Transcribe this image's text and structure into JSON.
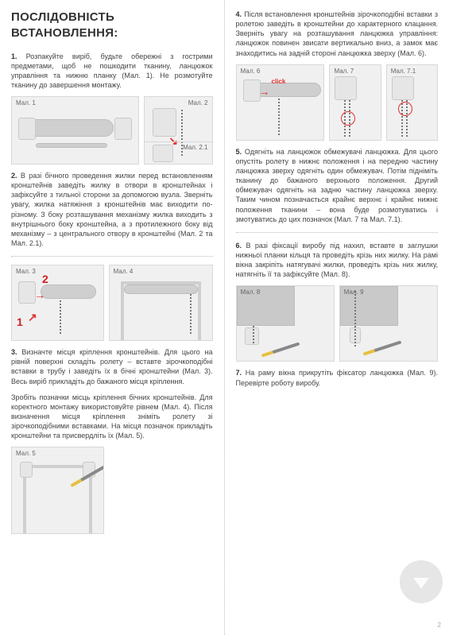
{
  "title": "ПОСЛІДОВНІСТЬ ВСТАНОВЛЕННЯ:",
  "p1": "1. Розпакуйте виріб, будьте обережні з гострими предметами, щоб не пошкодити тканину, ланцюжок управління та нижню планку (Мал. 1). Не розмотуйте тканину до завершення монтажу.",
  "p2": "2. В разі бічного проведення жилки перед встановленням кронштейнів заведіть жилку в отвори в кронштейнах і зафіксуйте з тильної сторони за допомогою вузла. Зверніть увагу, жилка натяжіння з кронштейнів має виходити по-різному. З боку розташування механізму жилка виходить з внутрішнього боку кронштейна, а з протилежного боку від механізму – з центрального отвору в кронштейні (Мал. 2 та Мал. 2.1).",
  "p3a": "3. Визначте місця кріплення кронштейнів. Для цього на рівній поверхні складіть ролету – вставте зірочкоподібні вставки в трубу і заведіть їх в бічні кронштейни (Мал. 3). Весь виріб прикладіть до бажаного місця кріплення.",
  "p3b": "Зробіть позначки місць кріплення бічних кронштейнів. Для коректного монтажу використовуйте рівнем (Мал. 4). Після визначення місця кріплення зніміть ролету зі зірочкоподібними вставками. На місця позначок прикладіть кронштейни та присвердліть їх (Мал. 5).",
  "p4": "4. Після встановлення кронштейнів зірочкоподібні вставки з ролетою заведіть в кронштейни до характерного клацання. Зверніть увагу на розташування ланцюжка управління: ланцюжок повинен звисати вертикально вниз, а замок має знаходитись на задній стороні ланцюжка зверху (Мал. 6).",
  "p5": "5. Одягніть на ланцюжок обмежувачі ланцюжка. Для цього опустіть ролету в нижнє положення і на передню частину ланцюжка зверху одягніть один обмежувач. Потім підніміть тканину до бажаного верхнього положення. Другий обмежувач одягніть на задню частину ланцюжка зверху. Таким чином позначається крайнє верхнє і крайнє нижнє положення тканини – вона буде розмотуватись і змотуватись до цих позначок (Мал. 7 та Мал. 7.1).",
  "p6": "6. В разі фіксації виробу під нахил, вставте в заглушки нижньої планки кільця та проведіть крізь них жилку. На рамі вікна закріпіть натягувачі жилки, проведіть крізь них жилку, натягніть її та зафіксуйте (Мал. 8).",
  "p7": "7. На раму вікна прикрутіть фіксатор ланцюжка (Мал. 9). Перевірте роботу виробу.",
  "labels": {
    "m1": "Мал. 1",
    "m2": "Мал. 2",
    "m21": "Мал. 2.1",
    "m3": "Мал. 3",
    "m4": "Мал. 4",
    "m5": "Мал. 5",
    "m6": "Мал. 6",
    "m7": "Мал. 7",
    "m71": "Мал. 7.1",
    "m8": "Мал. 8",
    "m9": "Мал. 9"
  },
  "click": "click",
  "badges": {
    "one": "1",
    "two": "2"
  },
  "pagenum": "2",
  "colors": {
    "text": "#444444",
    "accent": "#e03030",
    "fig_bg": "#f0f0f0",
    "fig_border": "#d8d8d8",
    "dot": "#bbbbbb"
  }
}
